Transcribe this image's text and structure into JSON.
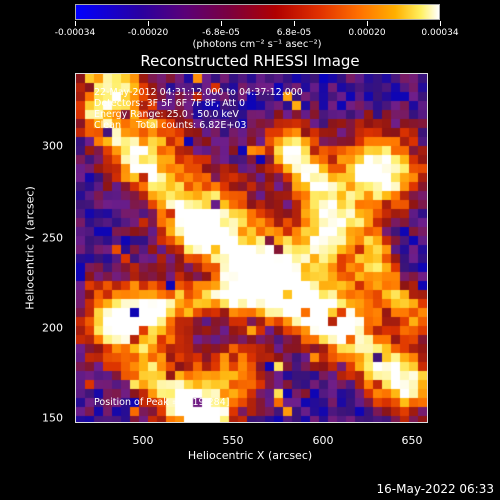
{
  "colorbar": {
    "ticks": [
      "-0.00034",
      "-0.00020",
      "-6.8e-05",
      "6.8e-05",
      "0.00020",
      "0.00034"
    ],
    "units": "(photons cm⁻² s⁻¹ asec⁻²)"
  },
  "title": "Reconstructed RHESSI Image",
  "annotation": {
    "line1": "22-May-2012 04:31:12.000 to 04:37:12.000",
    "line2": "Detectors: 3F 5F 6F 7F 8F, Att 0",
    "line3": "Energy Range: 25.0 - 50.0 keV",
    "line4": "Clean     Total counts: 6.82E+03",
    "peak": "Position of Peak = [619,284]"
  },
  "chart_data": {
    "type": "heatmap",
    "title": "Reconstructed RHESSI Image",
    "xlabel": "Heliocentric X (arcsec)",
    "ylabel": "Heliocentric Y (arcsec)",
    "xlim": [
      463,
      658
    ],
    "ylim": [
      147,
      341
    ],
    "x_ticks": [
      "500",
      "550",
      "600",
      "650"
    ],
    "y_ticks": [
      "150",
      "200",
      "250",
      "300"
    ],
    "colorbar_range": [
      -0.00034,
      0.00034
    ],
    "colors": {
      "low": "#0000ff",
      "mid": "#5a0078",
      "high": "#ffffff"
    },
    "peak_position": [
      619,
      284
    ]
  },
  "footer": {
    "date": "16-May-2022 06:33"
  }
}
